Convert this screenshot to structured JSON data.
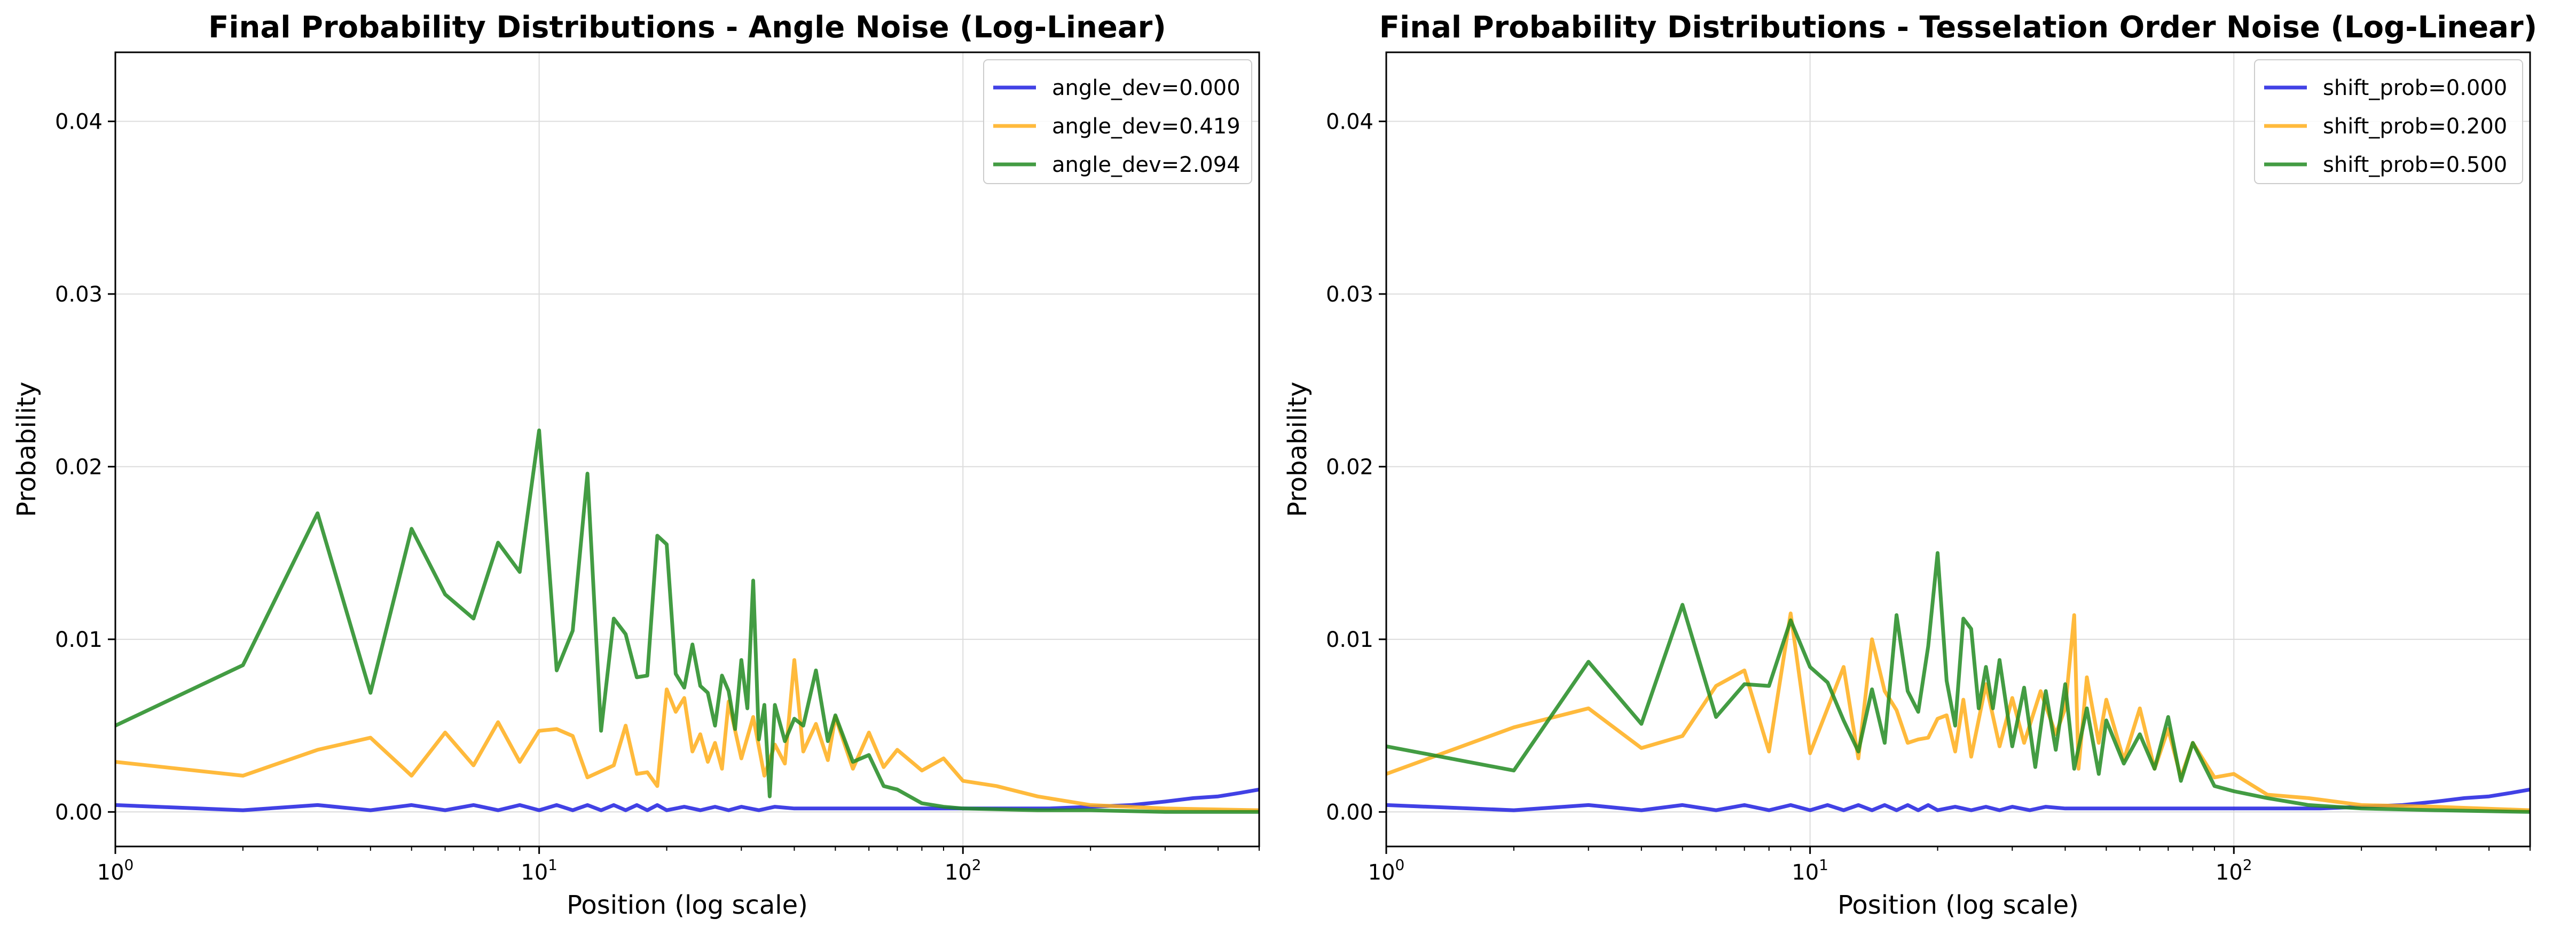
{
  "chart_data": [
    {
      "type": "line",
      "title": "Final Probability Distributions - Angle Noise (Log-Linear)",
      "xlabel": "Position (log scale)",
      "ylabel": "Probability",
      "x_scale": "log",
      "xlim": [
        1,
        500
      ],
      "ylim": [
        -0.002,
        0.044
      ],
      "x_ticks": [
        {
          "value": 1,
          "base": "10",
          "exp": "0"
        },
        {
          "value": 10,
          "base": "10",
          "exp": "1"
        },
        {
          "value": 100,
          "base": "10",
          "exp": "2"
        }
      ],
      "y_ticks": [
        "0.00",
        "0.01",
        "0.02",
        "0.03",
        "0.04"
      ],
      "grid": true,
      "legend_position": "top-right",
      "series": [
        {
          "name": "angle_dev=0.000",
          "color": "#2020e0",
          "x": [
            1,
            2,
            3,
            4,
            5,
            6,
            7,
            8,
            9,
            10,
            11,
            12,
            13,
            14,
            15,
            16,
            17,
            18,
            19,
            20,
            22,
            24,
            26,
            28,
            30,
            33,
            36,
            40,
            45,
            50,
            60,
            70,
            80,
            100,
            130,
            160,
            200,
            250,
            300,
            350,
            400,
            450,
            500
          ],
          "y": [
            0.0004,
            0.0001,
            0.0004,
            0.0001,
            0.0004,
            0.0001,
            0.0004,
            0.0001,
            0.0004,
            0.0001,
            0.0004,
            0.0001,
            0.0004,
            0.0001,
            0.0004,
            0.0001,
            0.0004,
            0.0001,
            0.0004,
            0.0001,
            0.0003,
            0.0001,
            0.0003,
            0.0001,
            0.0003,
            0.0001,
            0.0003,
            0.0002,
            0.0002,
            0.0002,
            0.0002,
            0.0002,
            0.0002,
            0.0002,
            0.0002,
            0.0002,
            0.0003,
            0.0004,
            0.0006,
            0.0008,
            0.0009,
            0.0011,
            0.0013
          ]
        },
        {
          "name": "angle_dev=0.419",
          "color": "#ffae1a",
          "x": [
            1,
            2,
            3,
            4,
            5,
            6,
            7,
            8,
            9,
            10,
            11,
            12,
            13,
            15,
            16,
            17,
            18,
            19,
            20,
            21,
            22,
            23,
            24,
            25,
            26,
            27,
            28,
            30,
            32,
            34,
            36,
            38,
            40,
            42,
            45,
            48,
            50,
            55,
            60,
            65,
            70,
            80,
            90,
            100,
            120,
            150,
            200,
            300,
            500
          ],
          "y": [
            0.0029,
            0.0021,
            0.0036,
            0.0043,
            0.0021,
            0.0046,
            0.0027,
            0.0052,
            0.0029,
            0.0047,
            0.0048,
            0.0044,
            0.002,
            0.0027,
            0.005,
            0.0022,
            0.0023,
            0.0015,
            0.0071,
            0.0058,
            0.0066,
            0.0035,
            0.0045,
            0.0029,
            0.004,
            0.0025,
            0.0064,
            0.0031,
            0.0055,
            0.0021,
            0.0039,
            0.0028,
            0.0088,
            0.0035,
            0.0051,
            0.003,
            0.0055,
            0.0025,
            0.0046,
            0.0026,
            0.0036,
            0.0024,
            0.0031,
            0.0018,
            0.0015,
            0.0009,
            0.0004,
            0.0002,
            0.0001
          ]
        },
        {
          "name": "angle_dev=2.094",
          "color": "#228b22",
          "x": [
            1,
            2,
            3,
            4,
            5,
            6,
            7,
            8,
            9,
            10,
            11,
            12,
            13,
            14,
            15,
            16,
            17,
            18,
            19,
            20,
            21,
            22,
            23,
            24,
            25,
            26,
            27,
            28,
            29,
            30,
            31,
            32,
            33,
            34,
            35,
            36,
            38,
            40,
            42,
            45,
            48,
            50,
            55,
            60,
            65,
            70,
            80,
            90,
            100,
            150,
            200,
            300,
            500
          ],
          "y": [
            0.005,
            0.0085,
            0.0173,
            0.0069,
            0.0164,
            0.0126,
            0.0112,
            0.0156,
            0.0139,
            0.0221,
            0.0082,
            0.0105,
            0.0196,
            0.0047,
            0.0112,
            0.0103,
            0.0078,
            0.0079,
            0.016,
            0.0155,
            0.008,
            0.0072,
            0.0097,
            0.0073,
            0.0069,
            0.005,
            0.0079,
            0.007,
            0.0048,
            0.0088,
            0.006,
            0.0134,
            0.0042,
            0.0062,
            0.0009,
            0.0062,
            0.0041,
            0.0054,
            0.005,
            0.0082,
            0.0041,
            0.0056,
            0.0029,
            0.0033,
            0.0015,
            0.0013,
            0.0005,
            0.0003,
            0.0002,
            0.0001,
            0.0001,
            0.0,
            0.0
          ]
        }
      ]
    },
    {
      "type": "line",
      "title": "Final Probability Distributions - Tesselation Order Noise (Log-Linear)",
      "xlabel": "Position (log scale)",
      "ylabel": "Probability",
      "x_scale": "log",
      "xlim": [
        1,
        500
      ],
      "ylim": [
        -0.002,
        0.044
      ],
      "x_ticks": [
        {
          "value": 1,
          "base": "10",
          "exp": "0"
        },
        {
          "value": 10,
          "base": "10",
          "exp": "1"
        },
        {
          "value": 100,
          "base": "10",
          "exp": "2"
        }
      ],
      "y_ticks": [
        "0.00",
        "0.01",
        "0.02",
        "0.03",
        "0.04"
      ],
      "grid": true,
      "legend_position": "top-right",
      "series": [
        {
          "name": "shift_prob=0.000",
          "color": "#2020e0",
          "x": [
            1,
            2,
            3,
            4,
            5,
            6,
            7,
            8,
            9,
            10,
            11,
            12,
            13,
            14,
            15,
            16,
            17,
            18,
            19,
            20,
            22,
            24,
            26,
            28,
            30,
            33,
            36,
            40,
            45,
            50,
            60,
            70,
            80,
            100,
            130,
            160,
            200,
            250,
            300,
            350,
            400,
            450,
            500
          ],
          "y": [
            0.0004,
            0.0001,
            0.0004,
            0.0001,
            0.0004,
            0.0001,
            0.0004,
            0.0001,
            0.0004,
            0.0001,
            0.0004,
            0.0001,
            0.0004,
            0.0001,
            0.0004,
            0.0001,
            0.0004,
            0.0001,
            0.0004,
            0.0001,
            0.0003,
            0.0001,
            0.0003,
            0.0001,
            0.0003,
            0.0001,
            0.0003,
            0.0002,
            0.0002,
            0.0002,
            0.0002,
            0.0002,
            0.0002,
            0.0002,
            0.0002,
            0.0002,
            0.0003,
            0.0004,
            0.0006,
            0.0008,
            0.0009,
            0.0011,
            0.0013
          ]
        },
        {
          "name": "shift_prob=0.200",
          "color": "#ffae1a",
          "x": [
            1,
            2,
            3,
            4,
            5,
            6,
            7,
            8,
            9,
            10,
            11,
            12,
            13,
            14,
            15,
            16,
            17,
            18,
            19,
            20,
            21,
            22,
            23,
            24,
            26,
            28,
            30,
            32,
            35,
            38,
            40,
            42,
            43,
            45,
            48,
            50,
            55,
            60,
            65,
            70,
            75,
            80,
            90,
            100,
            120,
            150,
            200,
            300,
            500
          ],
          "y": [
            0.0022,
            0.0049,
            0.006,
            0.0037,
            0.0044,
            0.0073,
            0.0082,
            0.0035,
            0.0115,
            0.0034,
            0.006,
            0.0084,
            0.0031,
            0.01,
            0.007,
            0.0059,
            0.004,
            0.0042,
            0.0043,
            0.0054,
            0.0056,
            0.0035,
            0.0065,
            0.0032,
            0.0074,
            0.0038,
            0.0066,
            0.004,
            0.007,
            0.0045,
            0.006,
            0.0114,
            0.0025,
            0.0078,
            0.004,
            0.0065,
            0.003,
            0.006,
            0.0025,
            0.0048,
            0.002,
            0.004,
            0.002,
            0.0022,
            0.001,
            0.0008,
            0.0004,
            0.0003,
            0.0001
          ]
        },
        {
          "name": "shift_prob=0.500",
          "color": "#228b22",
          "x": [
            1,
            2,
            3,
            4,
            5,
            6,
            7,
            8,
            9,
            10,
            11,
            12,
            13,
            14,
            15,
            16,
            17,
            18,
            19,
            20,
            21,
            22,
            23,
            24,
            25,
            26,
            27,
            28,
            30,
            32,
            34,
            36,
            38,
            40,
            42,
            45,
            48,
            50,
            55,
            60,
            65,
            70,
            75,
            80,
            90,
            100,
            120,
            150,
            200,
            300,
            500
          ],
          "y": [
            0.0038,
            0.0024,
            0.0087,
            0.0051,
            0.012,
            0.0055,
            0.0074,
            0.0073,
            0.0111,
            0.0084,
            0.0075,
            0.0053,
            0.0035,
            0.0071,
            0.004,
            0.0114,
            0.007,
            0.0058,
            0.0096,
            0.015,
            0.0076,
            0.005,
            0.0112,
            0.0106,
            0.006,
            0.0084,
            0.006,
            0.0088,
            0.0038,
            0.0072,
            0.0026,
            0.007,
            0.0036,
            0.0074,
            0.0025,
            0.006,
            0.0022,
            0.0053,
            0.0028,
            0.0045,
            0.0025,
            0.0055,
            0.0018,
            0.004,
            0.0015,
            0.0012,
            0.0008,
            0.0004,
            0.0002,
            0.0001,
            0.0
          ]
        }
      ]
    }
  ]
}
